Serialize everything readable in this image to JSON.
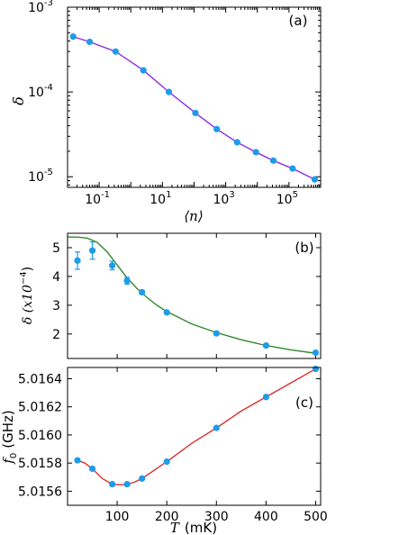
{
  "chart_data": [
    {
      "type": "line",
      "panel_label": "(a)",
      "x_scale": "log",
      "y_scale": "log",
      "xlabel": "⟨n⟩",
      "ylabel": "δ",
      "xlim": [
        0.01,
        1000000
      ],
      "ylim": [
        7.5e-06,
        0.001
      ],
      "x_ticks": [
        {
          "value": 0.1,
          "base": "10",
          "exp": "-1"
        },
        {
          "value": 10,
          "base": "10",
          "exp": "1"
        },
        {
          "value": 1000,
          "base": "10",
          "exp": "3"
        },
        {
          "value": 100000,
          "base": "10",
          "exp": "5"
        }
      ],
      "y_ticks": [
        {
          "value": 1e-05,
          "base": "10",
          "exp": "-5"
        },
        {
          "value": 0.0001,
          "base": "10",
          "exp": "-4"
        },
        {
          "value": 0.001,
          "base": "10",
          "exp": "-3"
        }
      ],
      "series": [
        {
          "kind": "points",
          "color": "#1e9be9",
          "x": [
            0.015,
            0.05,
            0.33,
            2.5,
            16,
            110,
            520,
            2300,
            9000,
            32000,
            130000,
            650000
          ],
          "y": [
            0.00045,
            0.00039,
            0.0003,
            0.00018,
            0.0001,
            5.65e-05,
            3.65e-05,
            2.55e-05,
            1.95e-05,
            1.55e-05,
            1.25e-05,
            9.3e-06
          ]
        },
        {
          "kind": "fit",
          "color": "#8a2be2",
          "x": [
            0.015,
            0.05,
            0.33,
            2.5,
            16,
            110,
            520,
            2300,
            9000,
            32000,
            130000,
            650000
          ],
          "y": [
            0.00045,
            0.00039,
            0.0003,
            0.00018,
            0.0001,
            5.65e-05,
            3.65e-05,
            2.55e-05,
            1.95e-05,
            1.55e-05,
            1.25e-05,
            9.3e-06
          ]
        }
      ]
    },
    {
      "type": "scatter",
      "panel_label": "(b)",
      "xlabel": "",
      "ylabel": "δ (x10",
      "ylabel_exp": "−4",
      "ylabel_close": ")",
      "xlim": [
        0,
        510
      ],
      "ylim": [
        1.15,
        5.5
      ],
      "y_ticks": [
        "2",
        "3",
        "4",
        "5"
      ],
      "series": [
        {
          "kind": "points",
          "color": "#1e9be9",
          "x": [
            20,
            50,
            90,
            120,
            150,
            200,
            300,
            400,
            500
          ],
          "y": [
            4.55,
            4.9,
            4.38,
            3.85,
            3.45,
            2.75,
            2.02,
            1.6,
            1.35
          ],
          "err": [
            0.3,
            0.3,
            0.15,
            0.12,
            0.07,
            0.05,
            0.05,
            0.05,
            0.05
          ]
        },
        {
          "kind": "fit",
          "color": "#2f8a2f",
          "x": [
            0,
            20,
            40,
            60,
            80,
            100,
            120,
            140,
            160,
            180,
            200,
            250,
            300,
            350,
            400,
            450,
            500
          ],
          "y": [
            5.37,
            5.37,
            5.33,
            5.18,
            4.85,
            4.4,
            3.95,
            3.58,
            3.27,
            3.0,
            2.78,
            2.35,
            2.05,
            1.8,
            1.6,
            1.45,
            1.33
          ]
        }
      ]
    },
    {
      "type": "line",
      "panel_label": "(c)",
      "xlabel": "T",
      "xlabel_unit": "(mK)",
      "ylabel": "f",
      "ylabel_sub": "0",
      "ylabel_unit": "(GHz)",
      "xlim": [
        0,
        510
      ],
      "ylim": [
        5.0155,
        5.01648
      ],
      "x_ticks": [
        "100",
        "200",
        "300",
        "400",
        "500"
      ],
      "y_ticks": [
        "5.0156",
        "5.0158",
        "5.0160",
        "5.0162",
        "5.0164"
      ],
      "series": [
        {
          "kind": "points",
          "color": "#1e9be9",
          "x": [
            20,
            50,
            90,
            120,
            150,
            200,
            300,
            400,
            500
          ],
          "y": [
            5.01582,
            5.01576,
            5.01565,
            5.01565,
            5.01569,
            5.01581,
            5.01605,
            5.01627,
            5.01647
          ]
        },
        {
          "kind": "fit",
          "color": "#d93030",
          "x": [
            20,
            35,
            50,
            70,
            90,
            105,
            120,
            135,
            150,
            175,
            200,
            250,
            300,
            350,
            400,
            450,
            500
          ],
          "y": [
            5.01582,
            5.0158,
            5.01576,
            5.01569,
            5.01565,
            5.015645,
            5.015648,
            5.015665,
            5.01569,
            5.01575,
            5.01581,
            5.01594,
            5.01605,
            5.01617,
            5.01627,
            5.01637,
            5.01647
          ]
        }
      ]
    }
  ]
}
